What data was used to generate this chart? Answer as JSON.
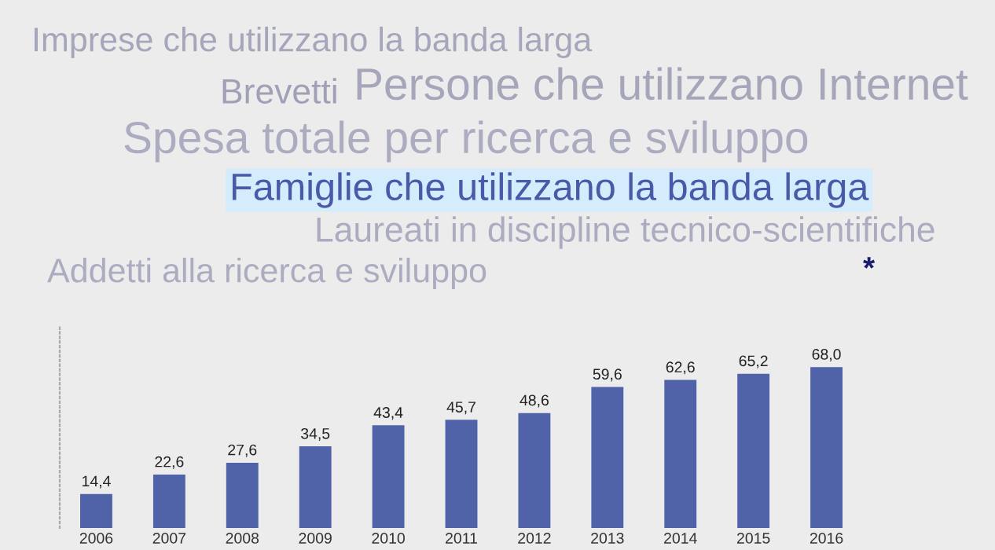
{
  "chart_data": {
    "type": "bar",
    "categories": [
      "2006",
      "2007",
      "2008",
      "2009",
      "2010",
      "2011",
      "2012",
      "2013",
      "2014",
      "2015",
      "2016"
    ],
    "values": [
      14.4,
      22.6,
      27.6,
      34.5,
      43.4,
      45.7,
      48.6,
      59.6,
      62.6,
      65.2,
      68.0
    ],
    "value_labels": [
      "14,4",
      "22,6",
      "27,6",
      "34,5",
      "43,4",
      "45,7",
      "48,6",
      "59,6",
      "62,6",
      "65,2",
      "68,0"
    ],
    "color": "#5062a8",
    "annotations": [
      "Imprese che utilizzano la banda larga",
      "Brevetti",
      "Persone che utilizzano Internet",
      "Spesa totale per ricerca e sviluppo",
      "Famiglie che utilizzano la banda larga",
      "Laureati in discipline tecnico-scientifiche",
      "Addetti alla ricerca e sviluppo",
      "*"
    ],
    "grid": false,
    "legend": false,
    "tick_labels": "x"
  }
}
